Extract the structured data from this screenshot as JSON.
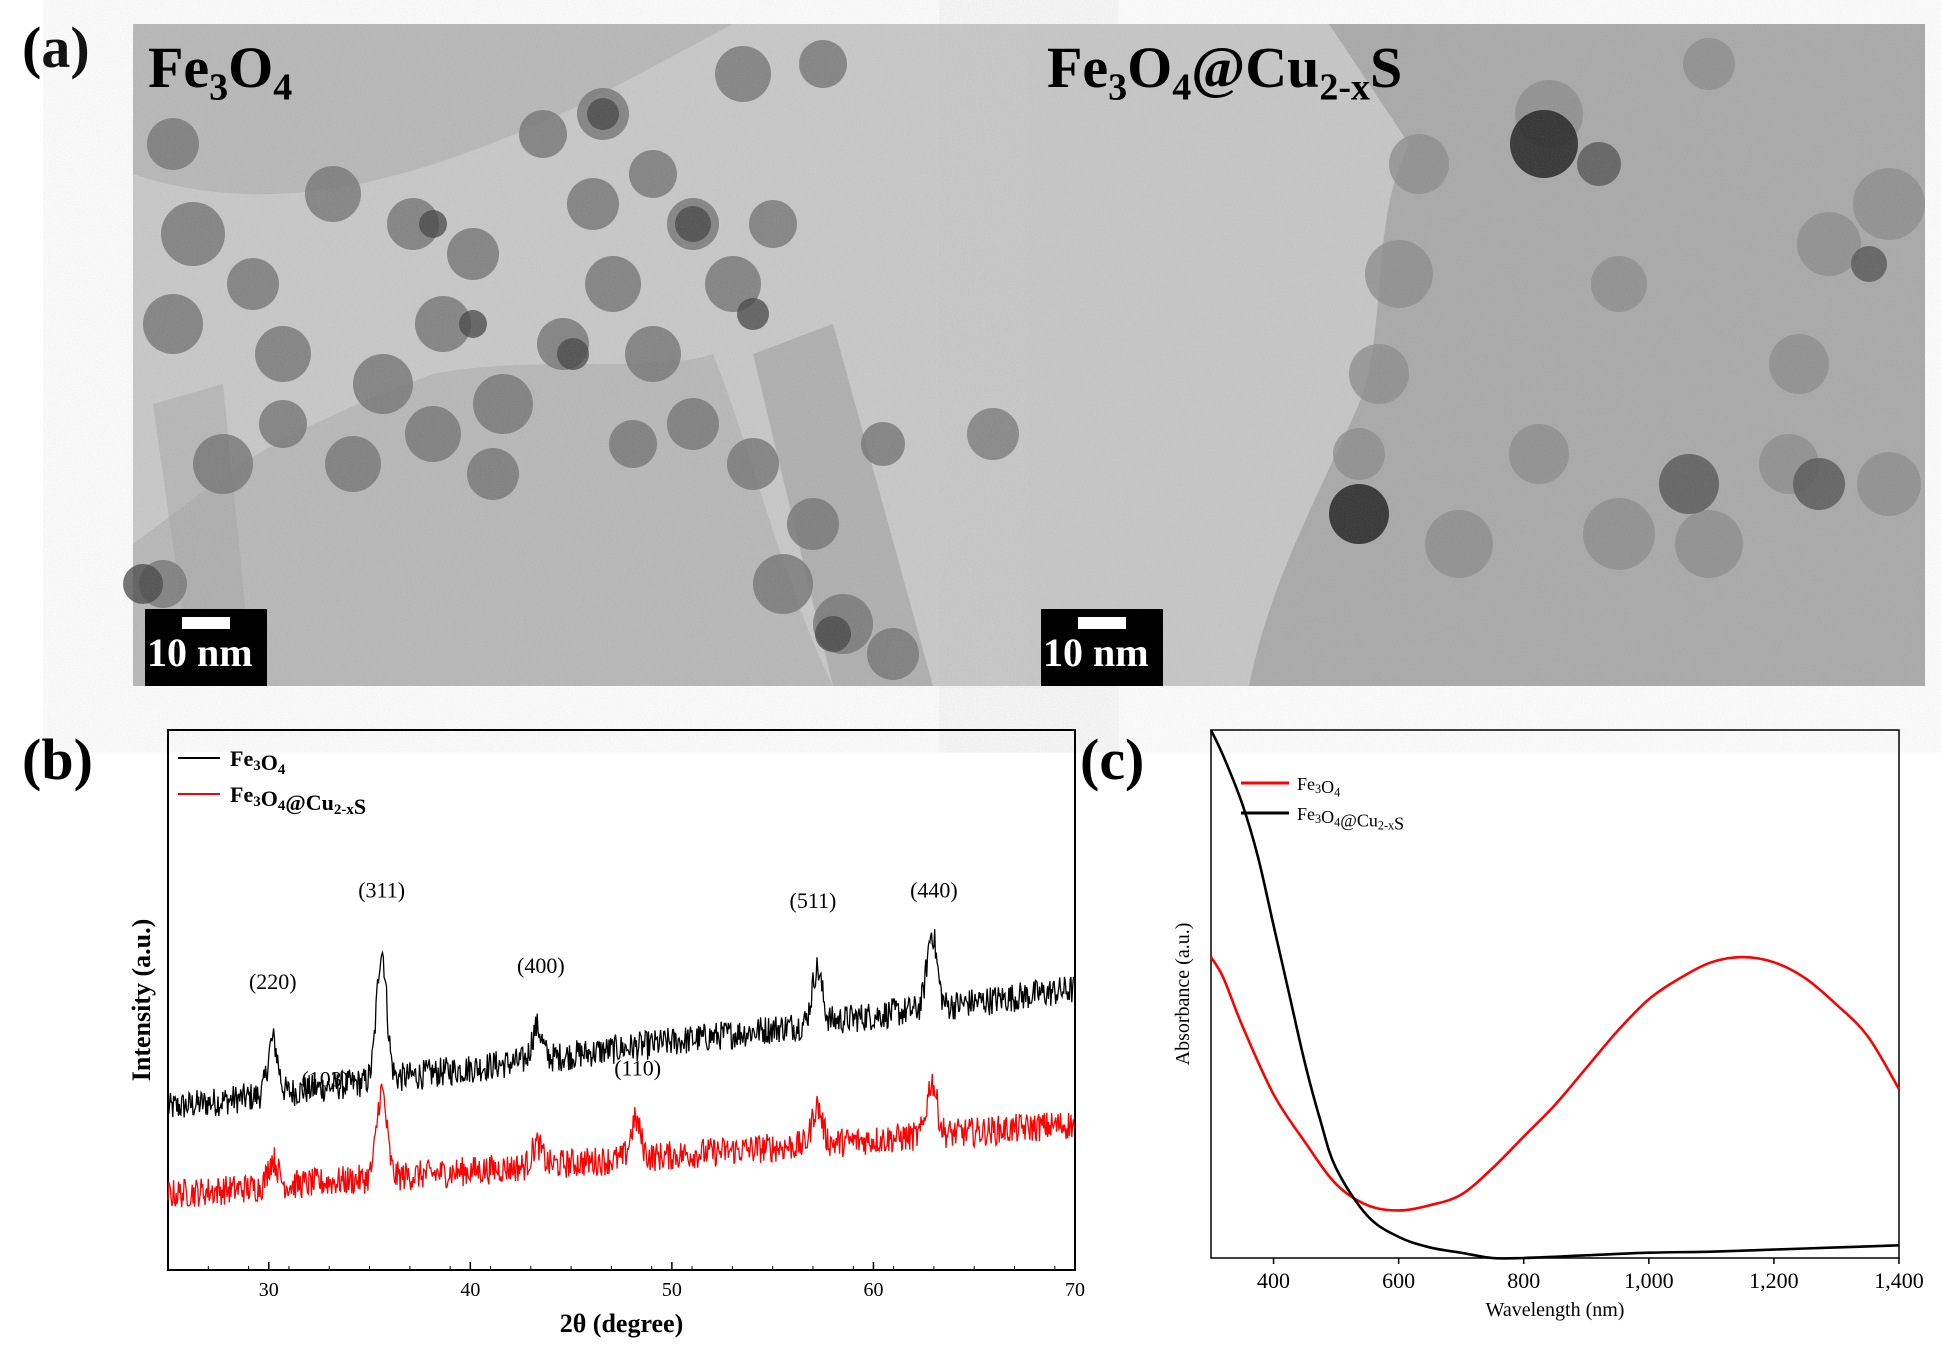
{
  "panels": {
    "a": {
      "label": "(a)",
      "left": {
        "title_main": "Fe",
        "title_sub1": "3",
        "title_mid": "O",
        "title_sub2": "4",
        "title_rest": "",
        "scale": "10 nm"
      },
      "right": {
        "title_main": "Fe",
        "title_sub1": "3",
        "title_mid": "O",
        "title_sub2": "4",
        "title_rest": "@Cu",
        "title_sub3": "2-x",
        "title_end": "S",
        "scale": "10 nm"
      }
    },
    "b": {
      "label": "(b)"
    },
    "c": {
      "label": "(c)"
    }
  },
  "chart_data": [
    {
      "id": "xrd",
      "type": "line",
      "xlabel": "2θ (degree)",
      "ylabel": "Intensity (a.u.)",
      "xlim": [
        25,
        70
      ],
      "xticks": [
        30,
        40,
        50,
        60,
        70
      ],
      "yticks": [],
      "legend": {
        "position": "top-left",
        "entries": [
          {
            "name": "Fe3O4",
            "color": "#000000"
          },
          {
            "name": "Fe3O4@Cu2-xS",
            "color": "#ff0000"
          }
        ]
      },
      "series": [
        {
          "name": "Fe3O4",
          "color": "#000000",
          "baseline_start": 0.3,
          "baseline_end": 0.52,
          "peaks": [
            [
              30.2,
              0.1
            ],
            [
              35.6,
              0.24
            ],
            [
              43.3,
              0.06
            ],
            [
              57.2,
              0.1
            ],
            [
              62.9,
              0.14
            ]
          ]
        },
        {
          "name": "Fe3O4@Cu2-xS",
          "color": "#ff0000",
          "baseline_start": 0.14,
          "baseline_end": 0.27,
          "peaks": [
            [
              30.2,
              0.05
            ],
            [
              35.6,
              0.16
            ],
            [
              43.3,
              0.04
            ],
            [
              48.2,
              0.07
            ],
            [
              57.2,
              0.07
            ],
            [
              62.9,
              0.1
            ]
          ]
        }
      ],
      "annotations": [
        {
          "text": "(220)",
          "x": 30.2,
          "y": 0.52
        },
        {
          "text": "(311)",
          "x": 35.6,
          "y": 0.69
        },
        {
          "text": "(400)",
          "x": 43.5,
          "y": 0.55
        },
        {
          "text": "(511)",
          "x": 57.0,
          "y": 0.67
        },
        {
          "text": "(440)",
          "x": 63.0,
          "y": 0.69
        },
        {
          "text": "(103)",
          "x": 32.8,
          "y": 0.34
        },
        {
          "text": "(110)",
          "x": 48.3,
          "y": 0.36
        }
      ],
      "ylim": [
        0,
        1
      ]
    },
    {
      "id": "absorbance",
      "type": "line",
      "xlabel": "Wavelength (nm)",
      "ylabel": "Absorbance (a.u.)",
      "xlim": [
        300,
        1400
      ],
      "ylim": [
        0,
        1
      ],
      "xticks": [
        400,
        600,
        800,
        1000,
        1200,
        1400
      ],
      "xtick_labels": [
        "400",
        "600",
        "800",
        "1,000",
        "1,200",
        "1,400"
      ],
      "legend": {
        "position": "top-left",
        "entries": [
          {
            "name": "Fe3O4",
            "color": "#ff0000"
          },
          {
            "name": "Fe3O4@Cu2-xS",
            "color": "#000000"
          }
        ]
      },
      "series": [
        {
          "name": "Fe3O4",
          "color": "#ff0000",
          "x": [
            300,
            320,
            350,
            400,
            450,
            500,
            550,
            600,
            650,
            700,
            750,
            800,
            850,
            900,
            950,
            1000,
            1050,
            1100,
            1150,
            1200,
            1250,
            1300,
            1350,
            1400
          ],
          "y": [
            0.57,
            0.53,
            0.44,
            0.31,
            0.22,
            0.14,
            0.1,
            0.09,
            0.1,
            0.12,
            0.17,
            0.23,
            0.29,
            0.36,
            0.43,
            0.49,
            0.53,
            0.56,
            0.57,
            0.56,
            0.53,
            0.48,
            0.42,
            0.32
          ]
        },
        {
          "name": "Fe3O4@Cu2-xS",
          "color": "#000000",
          "x": [
            300,
            320,
            350,
            375,
            400,
            425,
            450,
            475,
            500,
            550,
            600,
            650,
            700,
            750,
            800,
            900,
            1000,
            1100,
            1200,
            1300,
            1400
          ],
          "y": [
            1.0,
            0.95,
            0.86,
            0.76,
            0.63,
            0.5,
            0.37,
            0.26,
            0.17,
            0.08,
            0.04,
            0.02,
            0.01,
            0.0,
            0.0,
            0.005,
            0.01,
            0.012,
            0.016,
            0.02,
            0.024
          ]
        }
      ]
    }
  ]
}
